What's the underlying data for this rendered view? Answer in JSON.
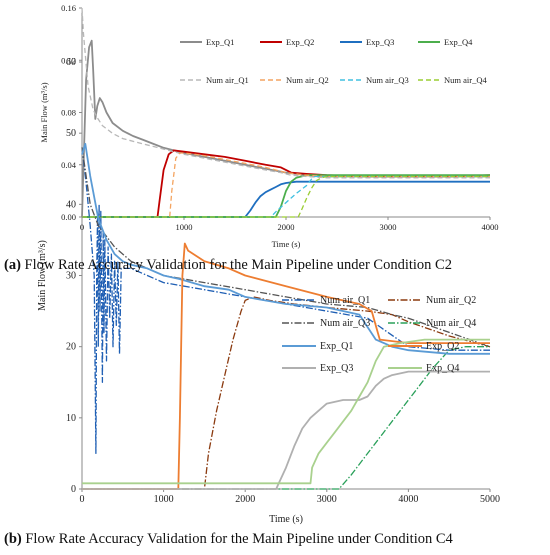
{
  "chart_data": [
    {
      "type": "line",
      "panel": "a",
      "caption_label": "(a)",
      "caption": "Flow Rate Accuracy Validation for the Main Pipeline under Condition C2",
      "xlabel": "Time (s)",
      "ylabel": "Main Flow  (m³/s)",
      "xlim": [
        0,
        4000
      ],
      "ylim": [
        0,
        0.16
      ],
      "xticks": [
        "0",
        "1000",
        "2000",
        "3000",
        "4000"
      ],
      "yticks": [
        "0.00",
        "0.04",
        "0.08",
        "0.12",
        "0.16"
      ],
      "grid": false,
      "legend_position": "top-right",
      "series": [
        {
          "name": "Exp_Q1",
          "color": "#8c8c8c",
          "dash": "solid",
          "x": [
            0,
            40,
            70,
            95,
            110,
            130,
            150,
            175,
            200,
            240,
            300,
            400,
            500,
            600,
            700,
            800,
            900,
            1000,
            1200,
            1400,
            1600,
            1800,
            2000,
            2100,
            2200,
            2400,
            2800,
            3200,
            3600,
            4000
          ],
          "y": [
            0.0,
            0.105,
            0.13,
            0.135,
            0.112,
            0.075,
            0.085,
            0.091,
            0.088,
            0.08,
            0.072,
            0.066,
            0.062,
            0.059,
            0.056,
            0.053,
            0.051,
            0.049,
            0.046,
            0.043,
            0.04,
            0.037,
            0.034,
            0.033,
            0.032,
            0.031,
            0.031,
            0.031,
            0.031,
            0.031
          ]
        },
        {
          "name": "Exp_Q2",
          "color": "#c00000",
          "dash": "solid",
          "x": [
            0,
            740,
            760,
            800,
            850,
            900,
            1000,
            1200,
            1400,
            1600,
            1800,
            1950,
            2050,
            2200,
            2400,
            2800,
            3200,
            3600,
            4000
          ],
          "y": [
            0.0,
            0.0,
            0.012,
            0.036,
            0.048,
            0.051,
            0.05,
            0.048,
            0.046,
            0.043,
            0.04,
            0.038,
            0.034,
            0.033,
            0.032,
            0.031,
            0.031,
            0.031,
            0.032
          ]
        },
        {
          "name": "Exp_Q3",
          "color": "#1f6fc0",
          "dash": "solid",
          "x": [
            0,
            1600,
            1650,
            1700,
            1750,
            1800,
            1850,
            1900,
            1950,
            2000,
            2100,
            2200,
            2400,
            2800,
            3200,
            3600,
            4000
          ],
          "y": [
            0.0,
            0.0,
            0.005,
            0.011,
            0.016,
            0.019,
            0.021,
            0.023,
            0.025,
            0.026,
            0.027,
            0.027,
            0.027,
            0.027,
            0.027,
            0.027,
            0.027
          ]
        },
        {
          "name": "Exp_Q4",
          "color": "#4cae4c",
          "dash": "solid",
          "x": [
            0,
            1900,
            1950,
            2000,
            2050,
            2100,
            2150,
            2200,
            2300,
            2500,
            2800,
            3200,
            3600,
            4000
          ],
          "y": [
            0.0,
            0.0,
            0.008,
            0.02,
            0.027,
            0.03,
            0.031,
            0.032,
            0.032,
            0.032,
            0.032,
            0.032,
            0.032,
            0.032
          ]
        },
        {
          "name": "Num air_Q1",
          "color": "#b8b8b8",
          "dash": "dash",
          "x": [
            0,
            15,
            60,
            110,
            150,
            200,
            300,
            400,
            600,
            800,
            1000,
            1200,
            1400,
            1600,
            1800,
            1950,
            2050,
            2200,
            2400,
            3000,
            4000
          ],
          "y": [
            0.16,
            0.14,
            0.1,
            0.082,
            0.076,
            0.07,
            0.064,
            0.06,
            0.056,
            0.052,
            0.048,
            0.045,
            0.042,
            0.039,
            0.036,
            0.034,
            0.032,
            0.031,
            0.03,
            0.03,
            0.03
          ]
        },
        {
          "name": "Num air_Q2",
          "color": "#f4a460",
          "dash": "dash",
          "x": [
            0,
            860,
            880,
            920,
            960,
            1000,
            1200,
            1400,
            1600,
            1800,
            2000,
            2200,
            2400,
            3000,
            4000
          ],
          "y": [
            0.0,
            0.0,
            0.02,
            0.045,
            0.049,
            0.049,
            0.047,
            0.044,
            0.041,
            0.038,
            0.034,
            0.032,
            0.031,
            0.031,
            0.031
          ]
        },
        {
          "name": "Num air_Q3",
          "color": "#40c0e0",
          "dash": "dash",
          "x": [
            0,
            1850,
            1900,
            2000,
            2100,
            2200,
            2250,
            2280,
            2300,
            2400,
            3000,
            4000
          ],
          "y": [
            0.0,
            0.0,
            0.004,
            0.011,
            0.018,
            0.024,
            0.029,
            0.031,
            0.031,
            0.031,
            0.031,
            0.031
          ]
        },
        {
          "name": "Num air_Q4",
          "color": "#9acd32",
          "dash": "dash",
          "x": [
            0,
            2120,
            2150,
            2200,
            2250,
            2300,
            2350,
            2400,
            3000,
            4000
          ],
          "y": [
            0.0,
            0.0,
            0.005,
            0.014,
            0.022,
            0.028,
            0.03,
            0.031,
            0.031,
            0.031
          ]
        }
      ]
    },
    {
      "type": "line",
      "panel": "b",
      "caption_label": "(b)",
      "caption": "Flow Rate Accuracy Validation for the Main Pipeline under Condition C4",
      "xlabel": "Time (s)",
      "ylabel": "Main Flow  (m³/s)",
      "xlim": [
        0,
        5000
      ],
      "ylim": [
        0,
        60
      ],
      "xticks": [
        "0",
        "1000",
        "2000",
        "3000",
        "4000",
        "5000"
      ],
      "yticks": [
        "0",
        "10",
        "20",
        "30",
        "40",
        "50",
        "60"
      ],
      "grid": false,
      "legend_position": "top-right",
      "series": [
        {
          "name": "Num air_Q1",
          "color": "#1f5fb4",
          "dash": "dashdot",
          "x": [
            0,
            50,
            100,
            150,
            170,
            180,
            190,
            200,
            210,
            220,
            230,
            250,
            260,
            270,
            280,
            300,
            320,
            340,
            360,
            380,
            400,
            420,
            440,
            460,
            480,
            500,
            600,
            800,
            1000,
            1500,
            2000,
            2500,
            3000,
            3500,
            4000,
            4500,
            5000
          ],
          "y": [
            48,
            43,
            37,
            30,
            5,
            30,
            38,
            20,
            40,
            25,
            39,
            15,
            36,
            22,
            35,
            18,
            34,
            24,
            33,
            20,
            32,
            23,
            32,
            19,
            31,
            31,
            31,
            30,
            29,
            28,
            27,
            26,
            25,
            24,
            20,
            19.5,
            19.5
          ]
        },
        {
          "name": "Num air_Q2",
          "color": "#8b3a0f",
          "dash": "dashdot",
          "x": [
            0,
            1500,
            1550,
            1650,
            1750,
            1850,
            1950,
            2000,
            2100,
            2300,
            2600,
            3000,
            3500,
            3800,
            4000,
            4500,
            5000
          ],
          "y": [
            0,
            0,
            5,
            11,
            16,
            21,
            25,
            26.5,
            27,
            26.5,
            26,
            25.5,
            25,
            24.5,
            23.5,
            21.5,
            20
          ]
        },
        {
          "name": "Num air_Q3",
          "color": "#555555",
          "dash": "dashdot",
          "x": [
            0,
            50,
            100,
            200,
            400,
            600,
            800,
            1000,
            1500,
            2000,
            2500,
            3000,
            3500,
            3800,
            4000,
            4500,
            5000
          ],
          "y": [
            48,
            44,
            40,
            37,
            34,
            32,
            31,
            30,
            29,
            28,
            27,
            26,
            25.5,
            24.5,
            24,
            22,
            20
          ]
        },
        {
          "name": "Num air_Q4",
          "color": "#2aa05a",
          "dash": "dashdot",
          "x": [
            0,
            3150,
            3300,
            3500,
            3700,
            3900,
            4100,
            4300,
            4500,
            4700,
            5000
          ],
          "y": [
            0,
            0,
            2,
            5,
            8,
            11,
            14,
            17,
            19.5,
            20,
            20
          ]
        },
        {
          "name": "Exp_Q1",
          "color": "#5b9bd5",
          "dash": "solid",
          "x": [
            0,
            40,
            100,
            200,
            300,
            400,
            500,
            600,
            800,
            1000,
            1200,
            1500,
            1800,
            2000,
            2500,
            3000,
            3400,
            3600,
            3700,
            3800,
            4000,
            4500,
            5000
          ],
          "y": [
            47,
            48.5,
            44,
            38,
            35,
            33,
            32,
            31.5,
            31,
            30,
            29.5,
            28.5,
            28,
            27,
            26,
            25.5,
            24.5,
            21,
            20.5,
            20,
            19.5,
            19,
            19
          ]
        },
        {
          "name": "Exp_Q2",
          "color": "#ed7d31",
          "dash": "solid",
          "x": [
            0,
            1180,
            1200,
            1230,
            1260,
            1300,
            1500,
            1800,
            2000,
            2500,
            3000,
            3400,
            3550,
            3650,
            4000,
            4500,
            5000
          ],
          "y": [
            0,
            0,
            10,
            30,
            34.5,
            33.5,
            32,
            31,
            30,
            28.5,
            27,
            26,
            25,
            21,
            20.5,
            20.5,
            20.5
          ]
        },
        {
          "name": "Exp_Q3",
          "color": "#b0b0b0",
          "dash": "solid",
          "x": [
            0,
            2380,
            2400,
            2500,
            2600,
            2700,
            2800,
            2900,
            3000,
            3200,
            3400,
            3500,
            3600,
            3700,
            3800,
            4000,
            4500,
            5000
          ],
          "y": [
            0,
            0,
            0.5,
            3,
            6,
            8.5,
            10,
            11,
            12,
            12.5,
            12.5,
            13,
            14.5,
            15.5,
            16,
            16.5,
            16.5,
            16.5
          ]
        },
        {
          "name": "Exp_Q4",
          "color": "#a9d18e",
          "dash": "solid",
          "x": [
            0,
            2800,
            2820,
            2900,
            3000,
            3100,
            3200,
            3300,
            3400,
            3500,
            3600,
            3700,
            3900,
            4200,
            4500,
            5000
          ],
          "y": [
            0.8,
            0.8,
            3,
            5,
            6.5,
            8,
            9.5,
            11,
            13,
            15,
            18,
            20,
            20.5,
            21,
            21,
            21
          ]
        }
      ]
    }
  ]
}
